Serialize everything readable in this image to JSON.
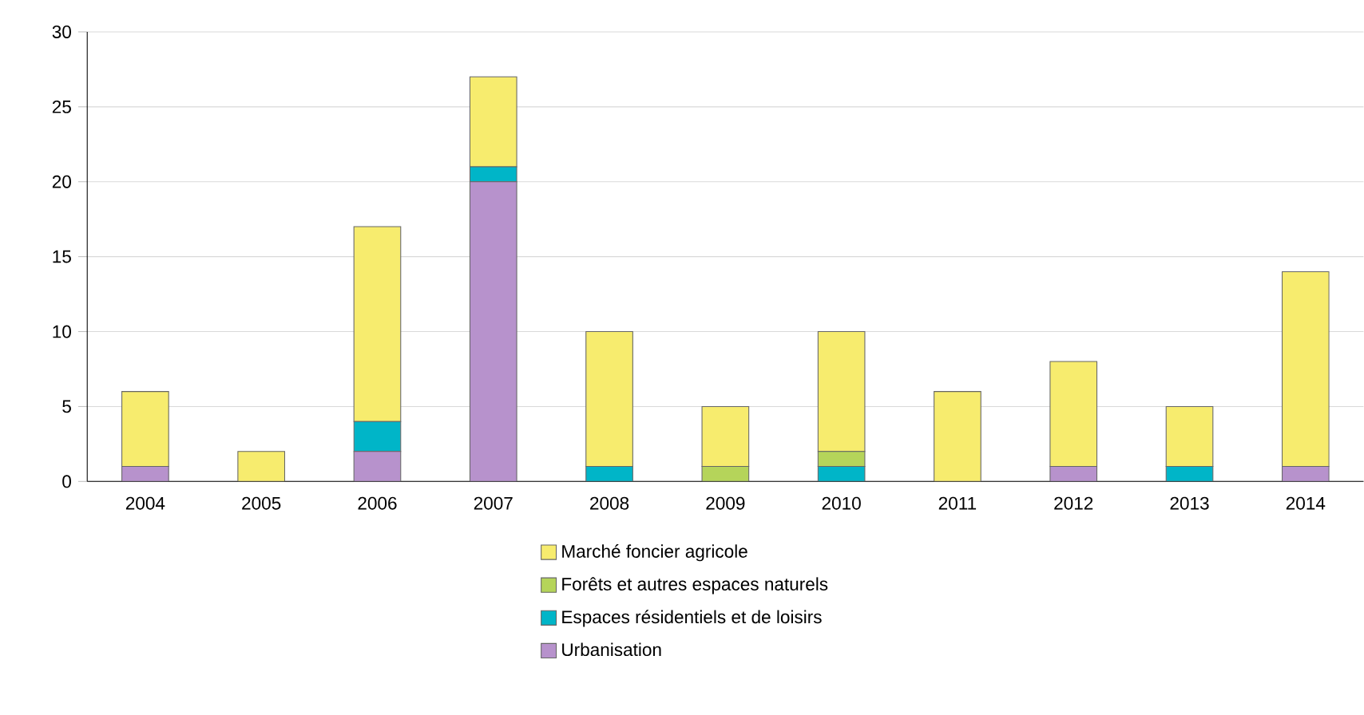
{
  "chart_data": {
    "type": "bar",
    "stacked": true,
    "categories": [
      "2004",
      "2005",
      "2006",
      "2007",
      "2008",
      "2009",
      "2010",
      "2011",
      "2012",
      "2013",
      "2014"
    ],
    "series": [
      {
        "name": "Urbanisation",
        "color": "#b792cc",
        "values": [
          1,
          0,
          2,
          20,
          0,
          0,
          0,
          0,
          1,
          0,
          1
        ]
      },
      {
        "name": "Espaces résidentiels et de loisirs",
        "color": "#00b5c8",
        "values": [
          0,
          0,
          2,
          1,
          1,
          0,
          1,
          0,
          0,
          1,
          0
        ]
      },
      {
        "name": "Forêts et autres espaces naturels",
        "color": "#b5d45a",
        "values": [
          0,
          0,
          0,
          0,
          0,
          1,
          1,
          0,
          0,
          0,
          0
        ]
      },
      {
        "name": "Marché foncier agricole",
        "color": "#f7ec6e",
        "values": [
          5,
          2,
          13,
          6,
          9,
          4,
          8,
          6,
          7,
          4,
          13
        ]
      }
    ],
    "ylim": [
      0,
      30
    ],
    "yticks": [
      0,
      5,
      10,
      15,
      20,
      25,
      30
    ],
    "grid": "y",
    "legend": "bottom"
  }
}
